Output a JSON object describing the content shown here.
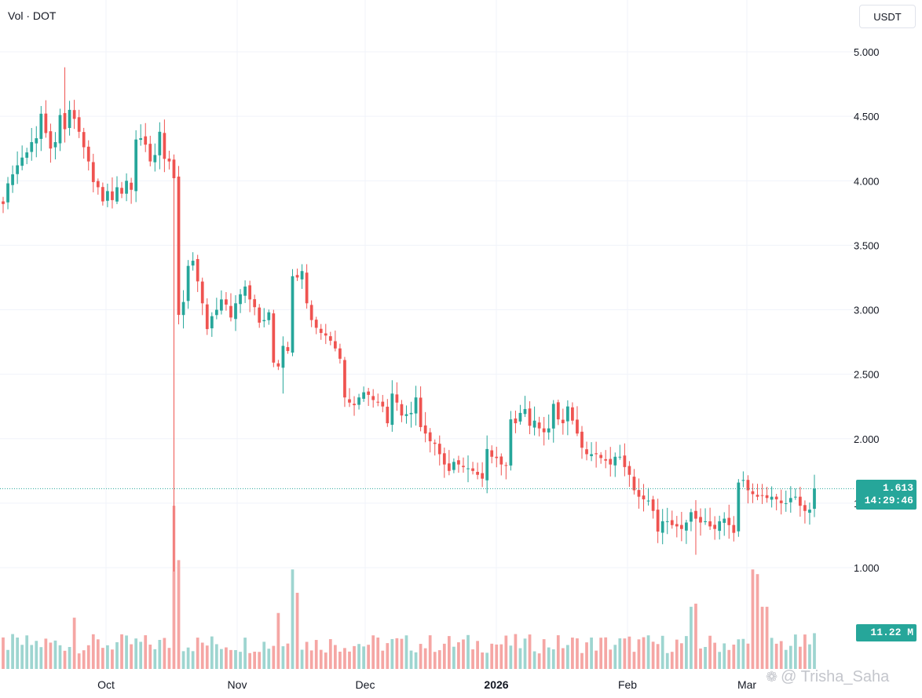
{
  "legend": {
    "text": "Vol · DOT"
  },
  "currency": {
    "label": "USDT"
  },
  "price_badge": {
    "price": "1.613",
    "countdown": "14:29:46"
  },
  "volume_badge": {
    "value": "11.22 M"
  },
  "watermark": {
    "text": "@ Trisha_Saha",
    "icon": "wechat-icon"
  },
  "colors": {
    "up": "#26a69a",
    "down": "#ef5350",
    "vol_up": "#9ed5d0",
    "vol_down": "#f5a6a4",
    "grid": "#f0f3fa",
    "price_line": "#26a69a"
  },
  "chart_data": {
    "type": "candlestick",
    "title": "",
    "ylim": [
      0.6,
      5.25
    ],
    "y_ticks": [
      "1.000",
      "1.500",
      "2.000",
      "2.500",
      "3.000",
      "3.500",
      "4.000",
      "4.500",
      "5.000"
    ],
    "x_ticks": [
      "Oct",
      "Nov",
      "Dec",
      "2026",
      "Feb",
      "Mar"
    ],
    "last_price": 1.613,
    "ohlc_close": [
      3.82,
      3.98,
      4.05,
      4.12,
      4.18,
      4.22,
      4.3,
      4.33,
      4.52,
      4.37,
      4.25,
      4.3,
      4.51,
      4.4,
      4.55,
      4.48,
      4.38,
      4.26,
      4.15,
      3.99,
      3.95,
      3.84,
      3.92,
      3.85,
      3.95,
      3.9,
      4.0,
      3.93,
      4.32,
      4.33,
      4.28,
      4.15,
      4.2,
      4.38,
      4.17,
      4.15,
      4.02,
      2.96,
      3.06,
      3.34,
      3.38,
      3.22,
      3.05,
      2.85,
      2.95,
      3.0,
      3.08,
      3.04,
      2.94,
      3.05,
      3.12,
      3.18,
      3.08,
      3.02,
      2.9,
      2.92,
      2.98,
      2.59,
      2.56,
      2.72,
      2.68,
      3.26,
      3.25,
      3.3,
      3.05,
      2.92,
      2.86,
      2.82,
      2.8,
      2.76,
      2.7,
      2.62,
      2.32,
      2.28,
      2.26,
      2.32,
      2.36,
      2.34,
      2.3,
      2.28,
      2.25,
      2.12,
      2.35,
      2.28,
      2.18,
      2.19,
      2.2,
      2.32,
      2.09,
      2.04,
      1.98,
      1.96,
      1.88,
      1.8,
      1.75,
      1.82,
      1.8,
      1.78,
      1.77,
      1.75,
      1.72,
      1.69,
      1.92,
      1.86,
      1.85,
      1.8,
      1.79,
      2.15,
      2.12,
      2.2,
      2.23,
      2.1,
      2.14,
      2.08,
      2.05,
      2.08,
      2.27,
      2.15,
      2.12,
      2.25,
      2.14,
      2.04,
      1.93,
      1.88,
      1.88,
      1.88,
      1.85,
      1.83,
      1.8,
      1.86,
      1.86,
      1.78,
      1.72,
      1.6,
      1.55,
      1.53,
      1.52,
      1.44,
      1.28,
      1.36,
      1.36,
      1.33,
      1.32,
      1.3,
      1.35,
      1.43,
      1.38,
      1.35,
      1.36,
      1.32,
      1.3,
      1.36,
      1.38,
      1.33,
      1.27,
      1.66,
      1.68,
      1.6,
      1.57,
      1.55,
      1.56,
      1.54,
      1.55,
      1.53,
      1.5,
      1.5,
      1.54,
      1.55,
      1.48,
      1.44,
      1.45,
      1.613
    ],
    "ohlc_high_extremes": {
      "max": 4.88,
      "min_low": 1.1
    },
    "volume_unit": "M",
    "last_volume": 11.22
  }
}
